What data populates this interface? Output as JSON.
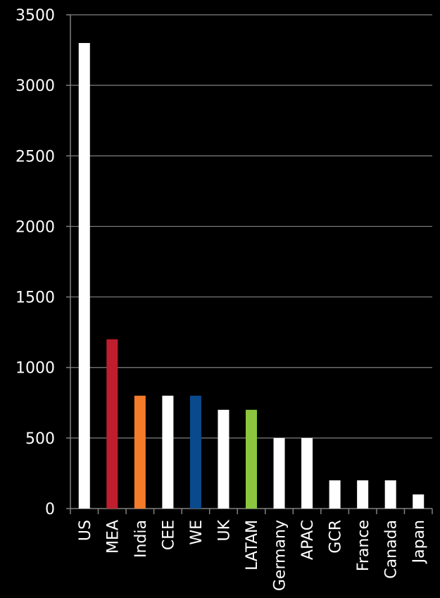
{
  "chart_data": {
    "type": "bar",
    "categories": [
      "US",
      "MEA",
      "India",
      "CEE",
      "WE",
      "UK",
      "LATAM",
      "Germany",
      "APAC",
      "GCR",
      "France",
      "Canada",
      "Japan"
    ],
    "values": [
      3300,
      1200,
      800,
      800,
      800,
      700,
      700,
      500,
      500,
      200,
      200,
      200,
      100
    ],
    "bar_colors": [
      "#ffffff",
      "#be1e2d",
      "#f47b2a",
      "#ffffff",
      "#0a4a8c",
      "#ffffff",
      "#8cc63f",
      "#ffffff",
      "#ffffff",
      "#ffffff",
      "#ffffff",
      "#ffffff",
      "#ffffff"
    ],
    "y_ticks": [
      "0",
      "500",
      "1000",
      "1500",
      "2000",
      "2500",
      "3000",
      "3500"
    ],
    "ylim": [
      0,
      3500
    ],
    "grid": true,
    "legend": false,
    "background": "#000000",
    "gridline_color": "#808080"
  }
}
